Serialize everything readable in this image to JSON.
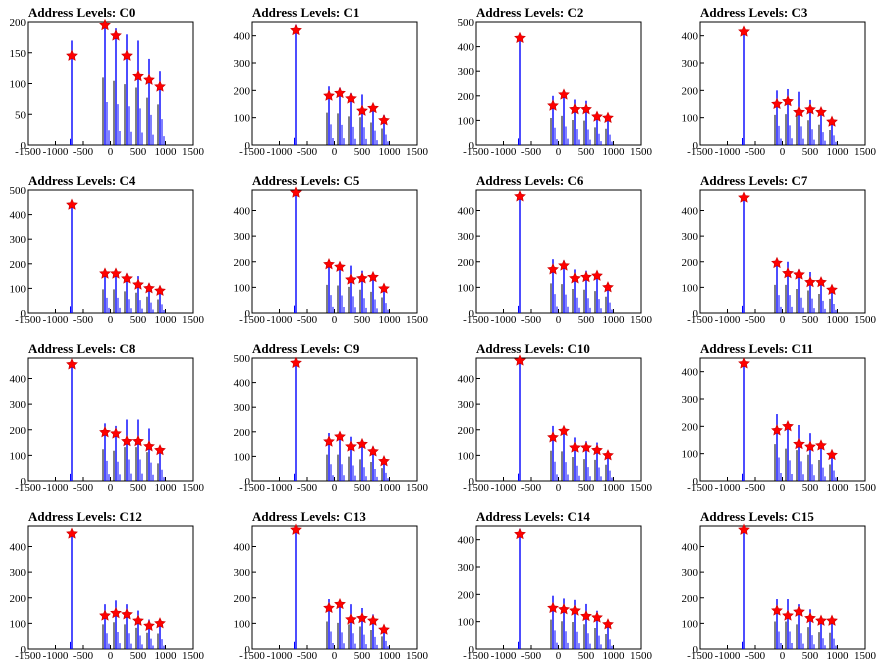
{
  "colors": {
    "histogram": "#0000ff",
    "peak_marker": "#ff0000",
    "axes": "#000000"
  },
  "shared": {
    "x_tick_labels": [
      "-1500",
      "-1000",
      "-500",
      "0",
      "500",
      "1000",
      "1500"
    ],
    "peak_x": [
      -700,
      -100,
      100,
      300,
      500,
      700,
      900
    ]
  },
  "chart_data": [
    {
      "type": "bar",
      "title": "Address Levels: C0",
      "xlim": [
        -1500,
        1500
      ],
      "ylim": [
        0,
        200
      ],
      "y_ticks": [
        0,
        50,
        100,
        150,
        200
      ],
      "x": [
        -700,
        -100,
        100,
        300,
        500,
        700,
        900
      ],
      "peak_heights": [
        145,
        195,
        178,
        145,
        112,
        106,
        95
      ],
      "bar_heights": [
        170,
        200,
        190,
        180,
        170,
        140,
        120
      ]
    },
    {
      "type": "bar",
      "title": "Address Levels: C1",
      "xlim": [
        -1500,
        1500
      ],
      "ylim": [
        0,
        450
      ],
      "y_ticks": [
        0,
        100,
        200,
        300,
        400
      ],
      "x": [
        -700,
        -100,
        100,
        300,
        500,
        700,
        900
      ],
      "peak_heights": [
        420,
        180,
        190,
        170,
        125,
        135,
        90
      ],
      "bar_heights": [
        440,
        215,
        210,
        190,
        185,
        150,
        110
      ]
    },
    {
      "type": "bar",
      "title": "Address Levels: C2",
      "xlim": [
        -1500,
        1500
      ],
      "ylim": [
        0,
        500
      ],
      "y_ticks": [
        0,
        100,
        200,
        300,
        400,
        500
      ],
      "x": [
        -700,
        -100,
        100,
        300,
        500,
        700,
        900
      ],
      "peak_heights": [
        435,
        160,
        205,
        145,
        145,
        115,
        110
      ],
      "bar_heights": [
        445,
        200,
        215,
        185,
        180,
        130,
        120
      ]
    },
    {
      "type": "bar",
      "title": "Address Levels: C3",
      "xlim": [
        -1500,
        1500
      ],
      "ylim": [
        0,
        450
      ],
      "y_ticks": [
        0,
        100,
        200,
        300,
        400
      ],
      "x": [
        -700,
        -100,
        100,
        300,
        500,
        700,
        900
      ],
      "peak_heights": [
        415,
        150,
        160,
        120,
        130,
        120,
        85
      ],
      "bar_heights": [
        425,
        200,
        205,
        195,
        165,
        135,
        100
      ]
    },
    {
      "type": "bar",
      "title": "Address Levels: C4",
      "xlim": [
        -1500,
        1500
      ],
      "ylim": [
        0,
        500
      ],
      "y_ticks": [
        0,
        100,
        200,
        300,
        400,
        500
      ],
      "x": [
        -700,
        -100,
        100,
        300,
        500,
        700,
        900
      ],
      "peak_heights": [
        440,
        160,
        160,
        140,
        115,
        100,
        90
      ],
      "bar_heights": [
        450,
        175,
        175,
        160,
        150,
        120,
        100
      ]
    },
    {
      "type": "bar",
      "title": "Address Levels: C5",
      "xlim": [
        -1500,
        1500
      ],
      "ylim": [
        0,
        480
      ],
      "y_ticks": [
        0,
        100,
        200,
        300,
        400
      ],
      "x": [
        -700,
        -100,
        100,
        300,
        500,
        700,
        900
      ],
      "peak_heights": [
        470,
        190,
        180,
        130,
        135,
        140,
        95
      ],
      "bar_heights": [
        480,
        200,
        195,
        185,
        165,
        150,
        110
      ]
    },
    {
      "type": "bar",
      "title": "Address Levels: C6",
      "xlim": [
        -1500,
        1500
      ],
      "ylim": [
        0,
        480
      ],
      "y_ticks": [
        0,
        100,
        200,
        300,
        400
      ],
      "x": [
        -700,
        -100,
        100,
        300,
        500,
        700,
        900
      ],
      "peak_heights": [
        455,
        170,
        185,
        135,
        140,
        145,
        100
      ],
      "bar_heights": [
        465,
        210,
        205,
        170,
        165,
        155,
        115
      ]
    },
    {
      "type": "bar",
      "title": "Address Levels: C7",
      "xlim": [
        -1500,
        1500
      ],
      "ylim": [
        0,
        480
      ],
      "y_ticks": [
        0,
        100,
        200,
        300,
        400
      ],
      "x": [
        -700,
        -100,
        100,
        300,
        500,
        700,
        900
      ],
      "peak_heights": [
        450,
        195,
        155,
        150,
        120,
        120,
        90
      ],
      "bar_heights": [
        460,
        200,
        200,
        170,
        160,
        135,
        100
      ]
    },
    {
      "type": "bar",
      "title": "Address Levels: C8",
      "xlim": [
        -1500,
        1500
      ],
      "ylim": [
        0,
        480
      ],
      "y_ticks": [
        0,
        100,
        200,
        300,
        400
      ],
      "x": [
        -700,
        -100,
        100,
        300,
        500,
        700,
        900
      ],
      "peak_heights": [
        455,
        190,
        185,
        155,
        155,
        135,
        120
      ],
      "bar_heights": [
        465,
        225,
        215,
        240,
        240,
        205,
        125
      ]
    },
    {
      "type": "bar",
      "title": "Address Levels: C9",
      "xlim": [
        -1500,
        1500
      ],
      "ylim": [
        0,
        500
      ],
      "y_ticks": [
        0,
        100,
        200,
        300,
        400,
        500
      ],
      "x": [
        -700,
        -100,
        100,
        300,
        500,
        700,
        900
      ],
      "peak_heights": [
        480,
        160,
        180,
        140,
        150,
        120,
        80
      ],
      "bar_heights": [
        495,
        195,
        195,
        180,
        160,
        140,
        95
      ]
    },
    {
      "type": "bar",
      "title": "Address Levels: C10",
      "xlim": [
        -1500,
        1500
      ],
      "ylim": [
        0,
        480
      ],
      "y_ticks": [
        0,
        100,
        200,
        300,
        400
      ],
      "x": [
        -700,
        -100,
        100,
        300,
        500,
        700,
        900
      ],
      "peak_heights": [
        470,
        170,
        195,
        130,
        130,
        120,
        100
      ],
      "bar_heights": [
        480,
        215,
        210,
        170,
        155,
        150,
        115
      ]
    },
    {
      "type": "bar",
      "title": "Address Levels: C11",
      "xlim": [
        -1500,
        1500
      ],
      "ylim": [
        0,
        450
      ],
      "y_ticks": [
        0,
        100,
        200,
        300,
        400
      ],
      "x": [
        -700,
        -100,
        100,
        300,
        500,
        700,
        900
      ],
      "peak_heights": [
        430,
        185,
        200,
        135,
        125,
        130,
        95
      ],
      "bar_heights": [
        445,
        245,
        215,
        205,
        175,
        140,
        110
      ]
    },
    {
      "type": "bar",
      "title": "Address Levels: C12",
      "xlim": [
        -1500,
        1500
      ],
      "ylim": [
        0,
        480
      ],
      "y_ticks": [
        0,
        100,
        200,
        300,
        400
      ],
      "x": [
        -700,
        -100,
        100,
        300,
        500,
        700,
        900
      ],
      "peak_heights": [
        450,
        130,
        140,
        135,
        110,
        90,
        100
      ],
      "bar_heights": [
        465,
        175,
        190,
        175,
        150,
        115,
        110
      ]
    },
    {
      "type": "bar",
      "title": "Address Levels: C13",
      "xlim": [
        -1500,
        1500
      ],
      "ylim": [
        0,
        480
      ],
      "y_ticks": [
        0,
        100,
        200,
        300,
        400
      ],
      "x": [
        -700,
        -100,
        100,
        300,
        500,
        700,
        900
      ],
      "peak_heights": [
        465,
        160,
        175,
        115,
        120,
        110,
        75
      ],
      "bar_heights": [
        475,
        195,
        185,
        175,
        160,
        135,
        90
      ]
    },
    {
      "type": "bar",
      "title": "Address Levels: C14",
      "xlim": [
        -1500,
        1500
      ],
      "ylim": [
        0,
        450
      ],
      "y_ticks": [
        0,
        100,
        200,
        300,
        400
      ],
      "x": [
        -700,
        -100,
        100,
        300,
        500,
        700,
        900
      ],
      "peak_heights": [
        420,
        150,
        145,
        140,
        120,
        115,
        90
      ],
      "bar_heights": [
        440,
        195,
        185,
        180,
        165,
        140,
        100
      ]
    },
    {
      "type": "bar",
      "title": "Address Levels: C15",
      "xlim": [
        -1500,
        1500
      ],
      "ylim": [
        0,
        480
      ],
      "y_ticks": [
        0,
        100,
        200,
        300,
        400
      ],
      "x": [
        -700,
        -100,
        100,
        300,
        500,
        700,
        900
      ],
      "peak_heights": [
        465,
        150,
        130,
        145,
        120,
        110,
        110
      ],
      "bar_heights": [
        475,
        195,
        195,
        175,
        155,
        120,
        115
      ]
    }
  ]
}
